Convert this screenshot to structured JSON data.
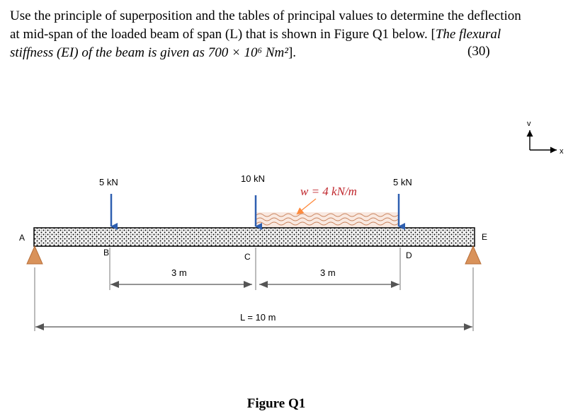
{
  "question": {
    "line1": "Use the principle of superposition and the tables of principal values to determine the deflection",
    "line2_main": "at mid-span of the loaded beam of span (L) that is shown in Figure Q1 below. [",
    "line2_italic": "The flexural",
    "line3_italic": "stiffness (EI) of the beam is given as ",
    "line3_value": "700 × 10⁶ Nm²",
    "line3_end": "].",
    "marks": "(30)"
  },
  "figure": {
    "caption": "Figure Q1",
    "axes": {
      "vertical": "v",
      "horizontal": "x"
    },
    "points": {
      "a": "A",
      "b": "B",
      "c": "C",
      "d": "D",
      "e": "E"
    },
    "loads": {
      "p1": "5 kN",
      "p2": "10 kN",
      "p3": "5 kN",
      "udl": "w = 4 kN/m"
    },
    "dimensions": {
      "bc": "3 m",
      "cd": "3 m",
      "span": "L = 10 m"
    },
    "colors": {
      "load_arrow": "#2e5fb0",
      "udl_label": "#c0272d",
      "support": "#d9925a",
      "dimension": "#555555"
    }
  }
}
